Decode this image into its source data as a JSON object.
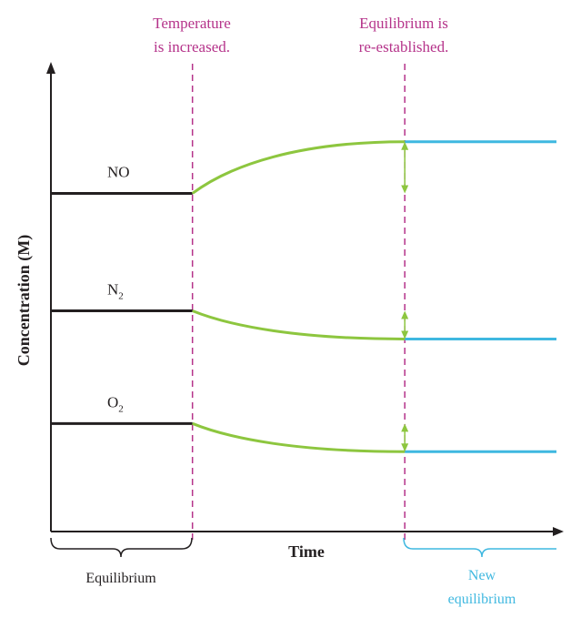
{
  "chart_data": {
    "type": "line",
    "title": "",
    "xlabel": "Time",
    "ylabel": "Concentration (M)",
    "annotations": {
      "temperature_change": [
        "Temperature",
        "is increased."
      ],
      "equilibrium_reestablished": [
        "Equilibrium is",
        "re-established."
      ]
    },
    "phases": {
      "initial_label": "Equilibrium",
      "final_label": [
        "New",
        "equilibrium"
      ]
    },
    "series": [
      {
        "name": "NO",
        "label_main": "NO",
        "label_sub": "",
        "initial": 0.72,
        "final": 0.83
      },
      {
        "name": "N2",
        "label_main": "N",
        "label_sub": "2",
        "initial": 0.47,
        "final": 0.41
      },
      {
        "name": "O2",
        "label_main": "O",
        "label_sub": "2",
        "initial": 0.23,
        "final": 0.17
      }
    ],
    "x_events": {
      "temperature_change": 0.28,
      "equilibrium": 0.7
    },
    "colors": {
      "initial": "#231f20",
      "transition": "#8dc63f",
      "final": "#3fb8e0",
      "event_line": "#b5338a",
      "axis": "#231f20"
    }
  }
}
